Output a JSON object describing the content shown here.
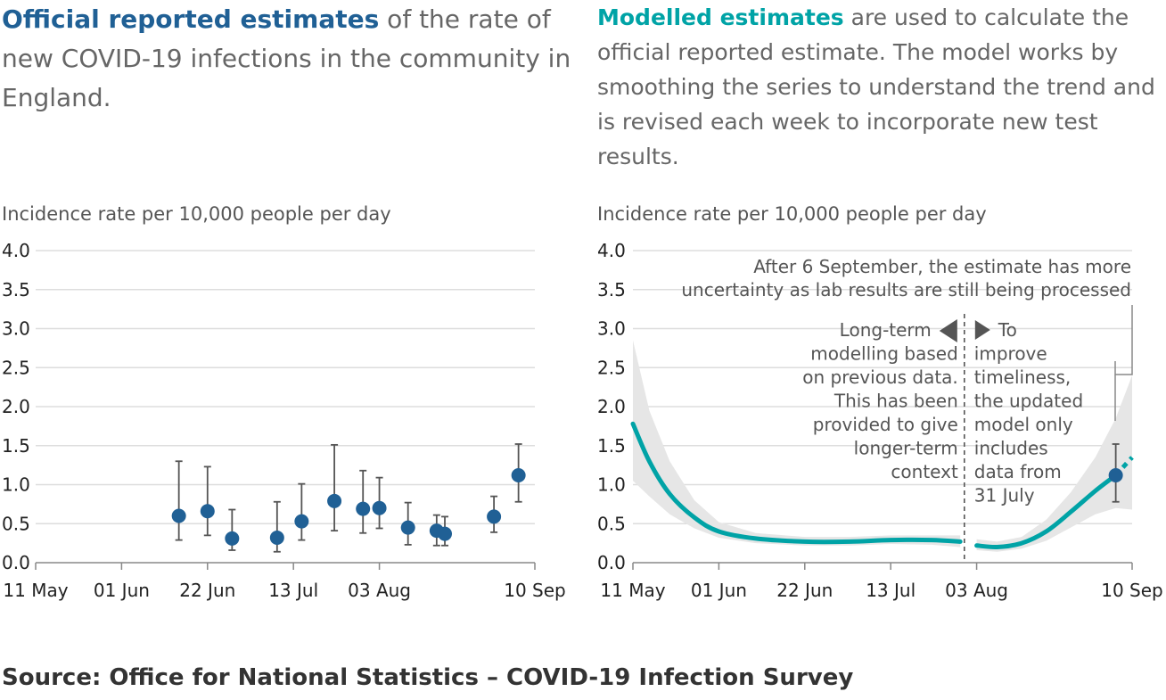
{
  "left_intro": {
    "highlight": "Official reported estimates",
    "text": " of the rate of new COVID-19 infections in the community in England."
  },
  "right_intro": {
    "highlight": "Modelled estimates",
    "text": " are used to calculate the official reported estimate. The model works by smoothing the series to understand the trend and is revised each week to incorporate new test results."
  },
  "source": "Source: Office for National Statistics – COVID-19 Infection Survey",
  "colors": {
    "official": "#206095",
    "modelled": "#00a3a6",
    "band": "#e6e6e6",
    "errorbar": "#555555",
    "grid": "#dddddd"
  },
  "chart_data": [
    {
      "type": "scatter",
      "ylabel": "Incidence rate per 10,000 people per day",
      "x_ticks": [
        "11 May",
        "01 Jun",
        "22 Jun",
        "13 Jul",
        "03 Aug",
        "10 Sep"
      ],
      "y_ticks": [
        "0.0",
        "0.5",
        "1.0",
        "1.5",
        "2.0",
        "2.5",
        "3.0",
        "3.5",
        "4.0"
      ],
      "ylim": [
        0,
        4
      ],
      "xlim": [
        "2020-05-11",
        "2020-09-10"
      ],
      "grid": true,
      "points": [
        {
          "x": "2020-06-15",
          "y": 0.6,
          "lower": 0.29,
          "upper": 1.3
        },
        {
          "x": "2020-06-22",
          "y": 0.66,
          "lower": 0.35,
          "upper": 1.23
        },
        {
          "x": "2020-06-28",
          "y": 0.31,
          "lower": 0.16,
          "upper": 0.68
        },
        {
          "x": "2020-07-09",
          "y": 0.32,
          "lower": 0.14,
          "upper": 0.78
        },
        {
          "x": "2020-07-15",
          "y": 0.53,
          "lower": 0.29,
          "upper": 1.01
        },
        {
          "x": "2020-07-23",
          "y": 0.79,
          "lower": 0.41,
          "upper": 1.51
        },
        {
          "x": "2020-07-30",
          "y": 0.69,
          "lower": 0.38,
          "upper": 1.18
        },
        {
          "x": "2020-08-03",
          "y": 0.7,
          "lower": 0.44,
          "upper": 1.09
        },
        {
          "x": "2020-08-10",
          "y": 0.45,
          "lower": 0.23,
          "upper": 0.77
        },
        {
          "x": "2020-08-17",
          "y": 0.41,
          "lower": 0.22,
          "upper": 0.61
        },
        {
          "x": "2020-08-19",
          "y": 0.37,
          "lower": 0.22,
          "upper": 0.59
        },
        {
          "x": "2020-08-31",
          "y": 0.59,
          "lower": 0.39,
          "upper": 0.85
        },
        {
          "x": "2020-09-06",
          "y": 1.12,
          "lower": 0.78,
          "upper": 1.52
        }
      ]
    },
    {
      "type": "line",
      "ylabel": "Incidence rate per 10,000 people per day",
      "x_ticks": [
        "11 May",
        "01 Jun",
        "22 Jun",
        "13 Jul",
        "03 Aug",
        "10 Sep"
      ],
      "y_ticks": [
        "0.0",
        "0.5",
        "1.0",
        "1.5",
        "2.0",
        "2.5",
        "3.0",
        "3.5",
        "4.0"
      ],
      "ylim": [
        0,
        4
      ],
      "xlim": [
        "2020-05-11",
        "2020-09-10"
      ],
      "grid": true,
      "long_term_series": [
        {
          "x": "2020-05-11",
          "y": 1.78,
          "lower": 1.05,
          "upper": 2.85
        },
        {
          "x": "2020-05-15",
          "y": 1.3,
          "lower": 0.85,
          "upper": 1.95
        },
        {
          "x": "2020-05-20",
          "y": 0.88,
          "lower": 0.62,
          "upper": 1.3
        },
        {
          "x": "2020-05-26",
          "y": 0.58,
          "lower": 0.44,
          "upper": 0.8
        },
        {
          "x": "2020-06-01",
          "y": 0.4,
          "lower": 0.32,
          "upper": 0.52
        },
        {
          "x": "2020-06-10",
          "y": 0.31,
          "lower": 0.25,
          "upper": 0.38
        },
        {
          "x": "2020-06-22",
          "y": 0.27,
          "lower": 0.22,
          "upper": 0.33
        },
        {
          "x": "2020-07-03",
          "y": 0.27,
          "lower": 0.22,
          "upper": 0.33
        },
        {
          "x": "2020-07-13",
          "y": 0.29,
          "lower": 0.24,
          "upper": 0.35
        },
        {
          "x": "2020-07-23",
          "y": 0.29,
          "lower": 0.23,
          "upper": 0.35
        },
        {
          "x": "2020-07-30",
          "y": 0.27,
          "lower": 0.2,
          "upper": 0.35
        }
      ],
      "updated_series": [
        {
          "x": "2020-08-03",
          "y": 0.22,
          "lower": 0.16,
          "upper": 0.3
        },
        {
          "x": "2020-08-08",
          "y": 0.2,
          "lower": 0.14,
          "upper": 0.27
        },
        {
          "x": "2020-08-14",
          "y": 0.25,
          "lower": 0.18,
          "upper": 0.33
        },
        {
          "x": "2020-08-20",
          "y": 0.4,
          "lower": 0.28,
          "upper": 0.55
        },
        {
          "x": "2020-08-26",
          "y": 0.65,
          "lower": 0.45,
          "upper": 0.9
        },
        {
          "x": "2020-09-01",
          "y": 0.92,
          "lower": 0.62,
          "upper": 1.35
        },
        {
          "x": "2020-09-06",
          "y": 1.12,
          "lower": 0.7,
          "upper": 1.85
        }
      ],
      "provisional_series": [
        {
          "x": "2020-09-06",
          "y": 1.12,
          "lower": 0.7,
          "upper": 1.85
        },
        {
          "x": "2020-09-10",
          "y": 1.35,
          "lower": 0.68,
          "upper": 2.4
        }
      ],
      "official_point": {
        "x": "2020-09-06",
        "y": 1.12,
        "lower": 0.78,
        "upper": 1.52
      },
      "divider_x": "2020-07-31",
      "annotations": {
        "uncertainty": [
          "After 6 September, the estimate has more",
          "uncertainty as lab results are still being processed"
        ],
        "left_note": [
          "Long-term",
          "modelling based",
          "on previous data.",
          "This has been",
          "provided to give",
          "longer-term",
          "context"
        ],
        "right_note": [
          "To",
          "improve",
          "timeliness,",
          "the updated",
          "model only",
          "includes",
          "data from",
          "31 July"
        ]
      }
    }
  ]
}
